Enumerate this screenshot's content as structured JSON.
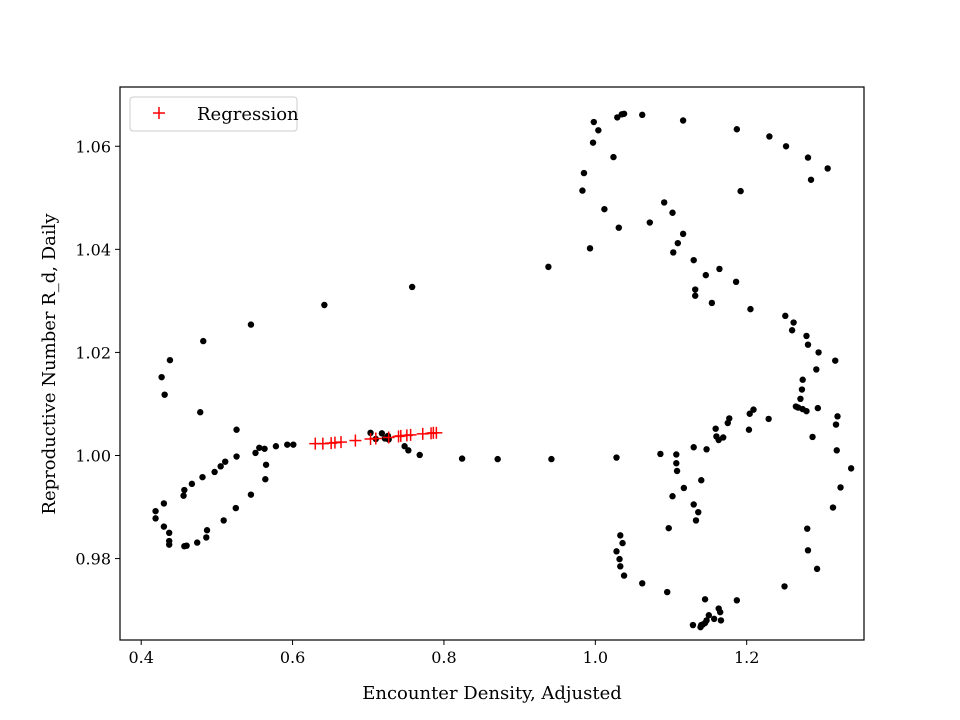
{
  "chart_data": {
    "type": "scatter",
    "title": "",
    "xlabel": "Encounter Density, Adjusted",
    "ylabel": "Reproductive Number R_d, Daily",
    "xlim": [
      0.372,
      1.355
    ],
    "ylim": [
      0.9642,
      1.0715
    ],
    "xticks": [
      0.4,
      0.6,
      0.8,
      1.0,
      1.2
    ],
    "xtick_labels": [
      "0.4",
      "0.6",
      "0.8",
      "1.0",
      "1.2"
    ],
    "yticks": [
      0.98,
      1.0,
      1.02,
      1.04,
      1.06
    ],
    "ytick_labels": [
      "0.98",
      "1.00",
      "1.02",
      "1.04",
      "1.06"
    ],
    "grid": false,
    "legend": {
      "placement": "upper-left",
      "entries": [
        "Regression"
      ]
    },
    "colors": {
      "data_points": "#000000",
      "regression": "#ff0000"
    },
    "series": [
      {
        "marker": "dot",
        "points": [
          [
            0.427,
            1.0152
          ],
          [
            0.431,
            1.0118
          ],
          [
            0.438,
            1.0185
          ],
          [
            0.482,
            1.0222
          ],
          [
            0.545,
            1.0254
          ],
          [
            0.642,
            1.0292
          ],
          [
            0.758,
            1.0327
          ],
          [
            0.478,
            1.0084
          ],
          [
            0.419,
            0.9892
          ],
          [
            0.419,
            0.9878
          ],
          [
            0.43,
            0.9907
          ],
          [
            0.43,
            0.9862
          ],
          [
            0.437,
            0.985
          ],
          [
            0.437,
            0.9834
          ],
          [
            0.437,
            0.9827
          ],
          [
            0.457,
            0.9824
          ],
          [
            0.46,
            0.9825
          ],
          [
            0.474,
            0.9831
          ],
          [
            0.486,
            0.9841
          ],
          [
            0.487,
            0.9855
          ],
          [
            0.456,
            0.9922
          ],
          [
            0.457,
            0.9933
          ],
          [
            0.467,
            0.9945
          ],
          [
            0.481,
            0.9958
          ],
          [
            0.497,
            0.9968
          ],
          [
            0.505,
            0.9979
          ],
          [
            0.511,
            0.9988
          ],
          [
            0.526,
            0.9998
          ],
          [
            0.509,
            0.9874
          ],
          [
            0.525,
            0.9898
          ],
          [
            0.545,
            0.9924
          ],
          [
            0.564,
            0.9954
          ],
          [
            0.565,
            0.9982
          ],
          [
            0.551,
            1.0005
          ],
          [
            0.556,
            1.0015
          ],
          [
            0.563,
            1.0013
          ],
          [
            0.578,
            1.0018
          ],
          [
            0.593,
            1.0021
          ],
          [
            0.601,
            1.0021
          ],
          [
            0.526,
            1.005
          ],
          [
            0.703,
            1.0044
          ],
          [
            0.718,
            1.0043
          ],
          [
            0.71,
            1.0032
          ],
          [
            0.722,
            1.0033
          ],
          [
            0.726,
            1.0038
          ],
          [
            0.727,
            1.0031
          ],
          [
            0.748,
            1.0018
          ],
          [
            0.753,
            1.001
          ],
          [
            0.768,
            1.0001
          ],
          [
            0.824,
            0.9994
          ],
          [
            0.871,
            0.9993
          ],
          [
            0.942,
            0.9993
          ],
          [
            0.938,
            1.0366
          ],
          [
            0.993,
            1.0402
          ],
          [
            1.028,
            0.9996
          ],
          [
            0.985,
            1.0548
          ],
          [
            0.983,
            1.0514
          ],
          [
            0.997,
            1.0607
          ],
          [
            0.998,
            1.0647
          ],
          [
            1.004,
            1.0631
          ],
          [
            1.029,
            1.0656
          ],
          [
            1.035,
            1.0662
          ],
          [
            1.038,
            1.0663
          ],
          [
            1.062,
            1.0661
          ],
          [
            1.116,
            1.065
          ],
          [
            1.024,
            1.0579
          ],
          [
            1.012,
            1.0478
          ],
          [
            1.031,
            1.0442
          ],
          [
            1.072,
            1.0452
          ],
          [
            1.091,
            1.0491
          ],
          [
            1.102,
            1.0471
          ],
          [
            1.116,
            1.043
          ],
          [
            1.109,
            1.0412
          ],
          [
            1.103,
            1.0394
          ],
          [
            1.13,
            1.0379
          ],
          [
            1.132,
            1.0322
          ],
          [
            1.132,
            1.031
          ],
          [
            1.146,
            1.035
          ],
          [
            1.154,
            1.0296
          ],
          [
            1.164,
            1.0362
          ],
          [
            1.186,
            1.0337
          ],
          [
            1.205,
            1.0284
          ],
          [
            1.187,
            1.0633
          ],
          [
            1.192,
            1.0513
          ],
          [
            1.23,
            1.0619
          ],
          [
            1.252,
            1.06
          ],
          [
            1.281,
            1.0578
          ],
          [
            1.285,
            1.0535
          ],
          [
            1.307,
            1.0557
          ],
          [
            1.251,
            1.0271
          ],
          [
            1.262,
            1.0258
          ],
          [
            1.26,
            1.0243
          ],
          [
            1.279,
            1.0232
          ],
          [
            1.281,
            1.0215
          ],
          [
            1.295,
            1.02
          ],
          [
            1.317,
            1.0184
          ],
          [
            1.292,
            1.0167
          ],
          [
            1.274,
            1.0147
          ],
          [
            1.273,
            1.0128
          ],
          [
            1.271,
            1.011
          ],
          [
            1.265,
            1.0095
          ],
          [
            1.268,
            1.0093
          ],
          [
            1.274,
            1.009
          ],
          [
            1.279,
            1.0086
          ],
          [
            1.294,
            1.0092
          ],
          [
            1.32,
            1.0076
          ],
          [
            1.318,
            1.006
          ],
          [
            1.287,
            1.0036
          ],
          [
            1.319,
            1.001
          ],
          [
            1.338,
            0.9975
          ],
          [
            1.324,
            0.9938
          ],
          [
            1.314,
            0.9899
          ],
          [
            1.28,
            0.9858
          ],
          [
            1.281,
            0.9816
          ],
          [
            1.293,
            0.978
          ],
          [
            1.25,
            0.9746
          ],
          [
            1.209,
            1.0089
          ],
          [
            1.204,
            1.0081
          ],
          [
            1.229,
            1.0071
          ],
          [
            1.203,
            1.005
          ],
          [
            1.177,
            1.0072
          ],
          [
            1.175,
            1.0063
          ],
          [
            1.159,
            1.0052
          ],
          [
            1.16,
            1.0037
          ],
          [
            1.163,
            1.003
          ],
          [
            1.169,
            1.0035
          ],
          [
            1.147,
            1.0012
          ],
          [
            1.13,
            1.0016
          ],
          [
            1.107,
            1.0002
          ],
          [
            1.086,
            1.0003
          ],
          [
            1.107,
            0.9985
          ],
          [
            1.108,
            0.997
          ],
          [
            1.117,
            0.9937
          ],
          [
            1.102,
            0.9921
          ],
          [
            1.14,
            0.9952
          ],
          [
            1.13,
            0.9905
          ],
          [
            1.136,
            0.989
          ],
          [
            1.133,
            0.9874
          ],
          [
            1.097,
            0.9859
          ],
          [
            1.033,
            0.9845
          ],
          [
            1.036,
            0.983
          ],
          [
            1.028,
            0.9814
          ],
          [
            1.032,
            0.9799
          ],
          [
            1.033,
            0.9785
          ],
          [
            1.038,
            0.9767
          ],
          [
            1.062,
            0.9752
          ],
          [
            1.095,
            0.9735
          ],
          [
            1.145,
            0.9721
          ],
          [
            1.187,
            0.9719
          ],
          [
            1.163,
            0.9703
          ],
          [
            1.165,
            0.9696
          ],
          [
            1.15,
            0.969
          ],
          [
            1.157,
            0.9683
          ],
          [
            1.147,
            0.968
          ],
          [
            1.166,
            0.968
          ],
          [
            1.145,
            0.9675
          ],
          [
            1.142,
            0.9672
          ],
          [
            1.14,
            0.9671
          ],
          [
            1.129,
            0.9671
          ],
          [
            1.139,
            0.9667
          ]
        ]
      },
      {
        "name": "Regression",
        "marker": "plus",
        "points": [
          [
            0.63,
            1.0023
          ],
          [
            0.64,
            1.0023
          ],
          [
            0.651,
            1.0024
          ],
          [
            0.656,
            1.0025
          ],
          [
            0.664,
            1.0026
          ],
          [
            0.683,
            1.0029
          ],
          [
            0.703,
            1.0032
          ],
          [
            0.71,
            1.0033
          ],
          [
            0.727,
            1.0035
          ],
          [
            0.74,
            1.0037
          ],
          [
            0.743,
            1.0038
          ],
          [
            0.751,
            1.0039
          ],
          [
            0.756,
            1.004
          ],
          [
            0.772,
            1.0042
          ],
          [
            0.783,
            1.0043
          ],
          [
            0.786,
            1.0044
          ],
          [
            0.79,
            1.0044
          ]
        ]
      }
    ]
  }
}
